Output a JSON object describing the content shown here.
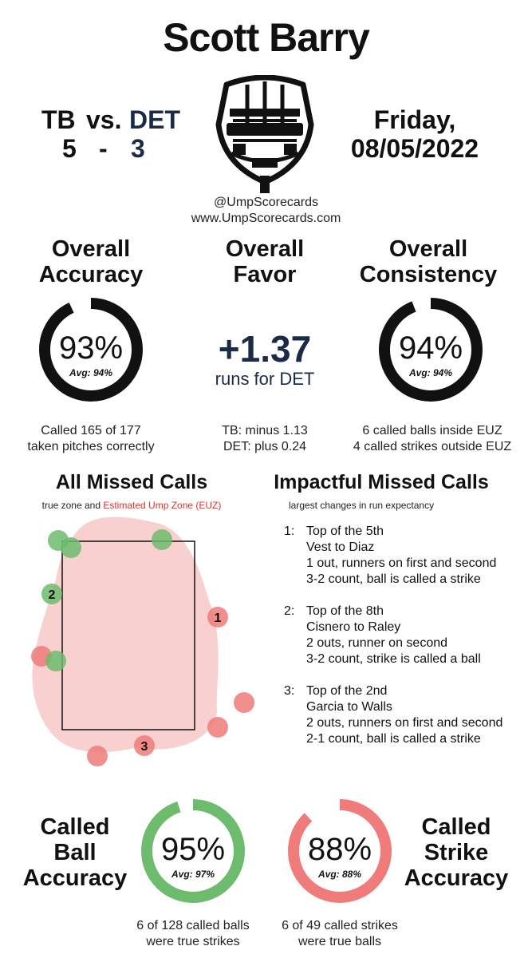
{
  "header": {
    "umpire": "Scott Barry",
    "away_team": "TB",
    "vs": "vs.",
    "home_team": "DET",
    "away_score": "5",
    "dash": "-",
    "home_score": "3",
    "day": "Friday,",
    "date": "08/05/2022",
    "handle": "@UmpScorecards",
    "website": "www.UmpScorecards.com"
  },
  "colors": {
    "navy": "#1b2a46",
    "green": "#6dbb6d",
    "red": "#ef7b7b",
    "euz_red": "#e0302f",
    "zone_fill": "#f8c8c8"
  },
  "overall": {
    "accuracy": {
      "heading_line1": "Overall",
      "heading_line2": "Accuracy",
      "value": "93%",
      "fraction": 0.93,
      "avg": "Avg: 94%",
      "caption_line1": "Called 165 of 177",
      "caption_line2": "taken pitches correctly"
    },
    "favor": {
      "heading_line1": "Overall",
      "heading_line2": "Favor",
      "value": "+1.37",
      "label": "runs for DET",
      "caption_line1": "TB: minus 1.13",
      "caption_line2": "DET: plus 0.24"
    },
    "consistency": {
      "heading_line1": "Overall",
      "heading_line2": "Consistency",
      "value": "94%",
      "fraction": 0.94,
      "avg": "Avg: 94%",
      "caption_line1": "6 called balls inside EUZ",
      "caption_line2": "4 called strikes outside EUZ"
    }
  },
  "missed": {
    "heading": "All Missed Calls",
    "sub_prefix": "true zone and",
    "sub_euz": "Estimated Ump Zone (EUZ)",
    "labels": [
      "1",
      "2",
      "3"
    ]
  },
  "impactful": {
    "heading": "Impactful Missed Calls",
    "sub": "largest changes in run expectancy",
    "calls": [
      {
        "num": "1:",
        "inning": "Top of the 5th",
        "matchup": "Vest to Diaz",
        "situation": "1 out, runners on first and second",
        "result": "3-2 count, ball is called a strike"
      },
      {
        "num": "2:",
        "inning": "Top of the 8th",
        "matchup": "Cisnero to Raley",
        "situation": "2 outs, runner on second",
        "result": "3-2 count, strike is called a ball"
      },
      {
        "num": "3:",
        "inning": "Top of the 2nd",
        "matchup": "Garcia to Walls",
        "situation": "2 outs, runners on first and second",
        "result": "2-1 count, ball is called a strike"
      }
    ]
  },
  "bottom": {
    "ball": {
      "heading_line1": "Called",
      "heading_line2": "Ball",
      "heading_line3": "Accuracy",
      "value": "95%",
      "fraction": 0.95,
      "avg": "Avg: 97%",
      "caption_line1": "6 of 128 called balls",
      "caption_line2": "were true strikes"
    },
    "strike": {
      "heading_line1": "Called",
      "heading_line2": "Strike",
      "heading_line3": "Accuracy",
      "value": "88%",
      "fraction": 0.88,
      "avg": "Avg: 88%",
      "caption_line1": "6 of 49 called strikes",
      "caption_line2": "were true balls"
    }
  }
}
